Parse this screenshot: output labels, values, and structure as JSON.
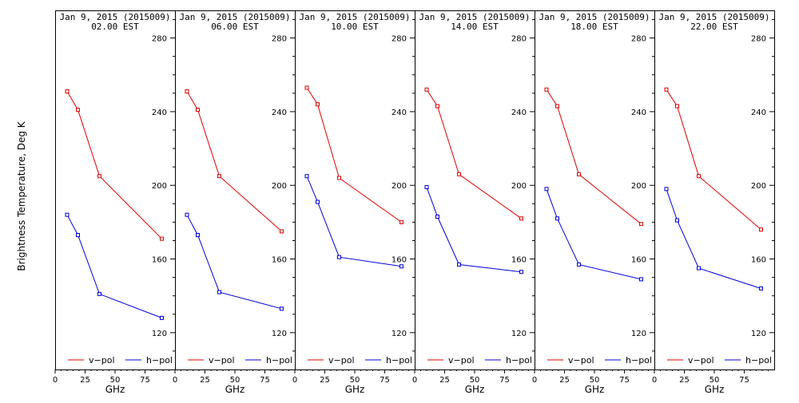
{
  "chart_data": {
    "type": "line",
    "ylabel": "Brightness Temperature, Deg K",
    "xlabel": "GHz",
    "xlim": [
      0,
      100
    ],
    "ylim": [
      100,
      295
    ],
    "x_ticks": [
      0,
      25,
      50,
      75
    ],
    "y_ticks": [
      120,
      160,
      200,
      240,
      280
    ],
    "legend": [
      {
        "label": "v−pol",
        "color": "#e00000"
      },
      {
        "label": "h−pol",
        "color": "#0000e0"
      }
    ],
    "panels": [
      {
        "title_line1": "Jan  9, 2015 (2015009)",
        "title_line2": "02.00 EST",
        "series": [
          {
            "name": "v−pol",
            "color": "#e00000",
            "x": [
              10,
              19,
              37,
              89
            ],
            "y": [
              251,
              241,
              205,
              171
            ]
          },
          {
            "name": "h−pol",
            "color": "#0000e0",
            "x": [
              10,
              19,
              37,
              89
            ],
            "y": [
              184,
              173,
              141,
              128
            ]
          }
        ]
      },
      {
        "title_line1": "Jan  9, 2015 (2015009)",
        "title_line2": "06.00 EST",
        "series": [
          {
            "name": "v−pol",
            "color": "#e00000",
            "x": [
              10,
              19,
              37,
              89
            ],
            "y": [
              251,
              241,
              205,
              175
            ]
          },
          {
            "name": "h−pol",
            "color": "#0000e0",
            "x": [
              10,
              19,
              37,
              89
            ],
            "y": [
              184,
              173,
              142,
              133
            ]
          }
        ]
      },
      {
        "title_line1": "Jan  9, 2015 (2015009)",
        "title_line2": "10.00 EST",
        "series": [
          {
            "name": "v−pol",
            "color": "#e00000",
            "x": [
              10,
              19,
              37,
              89
            ],
            "y": [
              253,
              244,
              204,
              180
            ]
          },
          {
            "name": "h−pol",
            "color": "#0000e0",
            "x": [
              10,
              19,
              37,
              89
            ],
            "y": [
              205,
              191,
              161,
              156
            ]
          }
        ]
      },
      {
        "title_line1": "Jan  9, 2015 (2015009)",
        "title_line2": "14.00 EST",
        "series": [
          {
            "name": "v−pol",
            "color": "#e00000",
            "x": [
              10,
              19,
              37,
              89
            ],
            "y": [
              252,
              243,
              206,
              182
            ]
          },
          {
            "name": "h−pol",
            "color": "#0000e0",
            "x": [
              10,
              19,
              37,
              89
            ],
            "y": [
              199,
              183,
              157,
              153
            ]
          }
        ]
      },
      {
        "title_line1": "Jan  9, 2015 (2015009)",
        "title_line2": "18.00 EST",
        "series": [
          {
            "name": "v−pol",
            "color": "#e00000",
            "x": [
              10,
              19,
              37,
              89
            ],
            "y": [
              252,
              243,
              206,
              179
            ]
          },
          {
            "name": "h−pol",
            "color": "#0000e0",
            "x": [
              10,
              19,
              37,
              89
            ],
            "y": [
              198,
              182,
              157,
              149
            ]
          }
        ]
      },
      {
        "title_line1": "Jan  9, 2015 (2015009)",
        "title_line2": "22.00 EST",
        "series": [
          {
            "name": "v−pol",
            "color": "#e00000",
            "x": [
              10,
              19,
              37,
              89
            ],
            "y": [
              252,
              243,
              205,
              176
            ]
          },
          {
            "name": "h−pol",
            "color": "#0000e0",
            "x": [
              10,
              19,
              37,
              89
            ],
            "y": [
              198,
              181,
              155,
              144
            ]
          }
        ]
      }
    ]
  }
}
